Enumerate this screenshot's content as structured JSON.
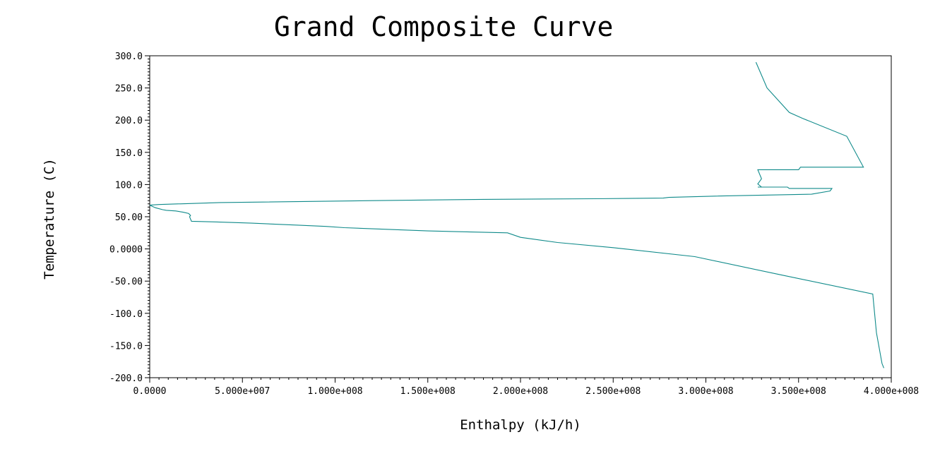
{
  "chart_data": {
    "type": "line",
    "title": "Grand Composite Curve",
    "xlabel": "Enthalpy (kJ/h)",
    "ylabel": "Temperature (C)",
    "xlim": [
      0,
      400000000
    ],
    "ylim": [
      -200,
      300
    ],
    "x_ticks": [
      {
        "value": 0,
        "label": "0.0000"
      },
      {
        "value": 50000000,
        "label": "5.000e+007"
      },
      {
        "value": 100000000,
        "label": "1.000e+008"
      },
      {
        "value": 150000000,
        "label": "1.500e+008"
      },
      {
        "value": 200000000,
        "label": "2.000e+008"
      },
      {
        "value": 250000000,
        "label": "2.500e+008"
      },
      {
        "value": 300000000,
        "label": "3.000e+008"
      },
      {
        "value": 350000000,
        "label": "3.500e+008"
      },
      {
        "value": 400000000,
        "label": "4.000e+008"
      }
    ],
    "y_ticks": [
      {
        "value": 300,
        "label": "300.0"
      },
      {
        "value": 250,
        "label": "250.0"
      },
      {
        "value": 200,
        "label": "200.0"
      },
      {
        "value": 150,
        "label": "150.0"
      },
      {
        "value": 100,
        "label": "100.0"
      },
      {
        "value": 50,
        "label": "50.00"
      },
      {
        "value": 0,
        "label": "0.0000"
      },
      {
        "value": -50,
        "label": "-50.00"
      },
      {
        "value": -100,
        "label": "-100.0"
      },
      {
        "value": -150,
        "label": "-150.0"
      },
      {
        "value": -200,
        "label": "-200.0"
      }
    ],
    "grid": false,
    "line_color": "#0f8a8a",
    "series": [
      {
        "x": [
          327000000,
          333000000,
          345000000,
          352000000,
          376000000,
          385000000,
          351000000,
          350000000,
          328000000,
          330000000,
          328000000,
          330000000,
          328000000,
          344000000,
          345000000,
          368000000,
          367000000,
          357000000,
          305000000,
          280000000,
          277000000,
          240000000,
          180000000,
          120000000,
          38000000,
          5000000,
          0,
          3000000,
          7000000,
          9000000,
          14000000,
          18000000,
          21000000,
          22000000,
          21500000,
          22500000,
          35000000,
          55000000,
          80000000,
          95000000,
          105000000,
          150000000,
          193000000,
          200000000,
          220000000,
          250000000,
          294000000,
          340000000,
          390000000,
          391000000,
          392000000,
          395000000,
          396000000
        ],
        "y": [
          290,
          250,
          212,
          203,
          175,
          127,
          127,
          123,
          123,
          109,
          101,
          96,
          96,
          96,
          94,
          94,
          90,
          85,
          82,
          80,
          79,
          78,
          77,
          75,
          72,
          69,
          68,
          64,
          61,
          60,
          59,
          57,
          55,
          52,
          50,
          43,
          42,
          40,
          37,
          35,
          33,
          28,
          25,
          18,
          10,
          2,
          -12,
          -40,
          -70,
          -100,
          -130,
          -178,
          -185
        ]
      }
    ]
  }
}
